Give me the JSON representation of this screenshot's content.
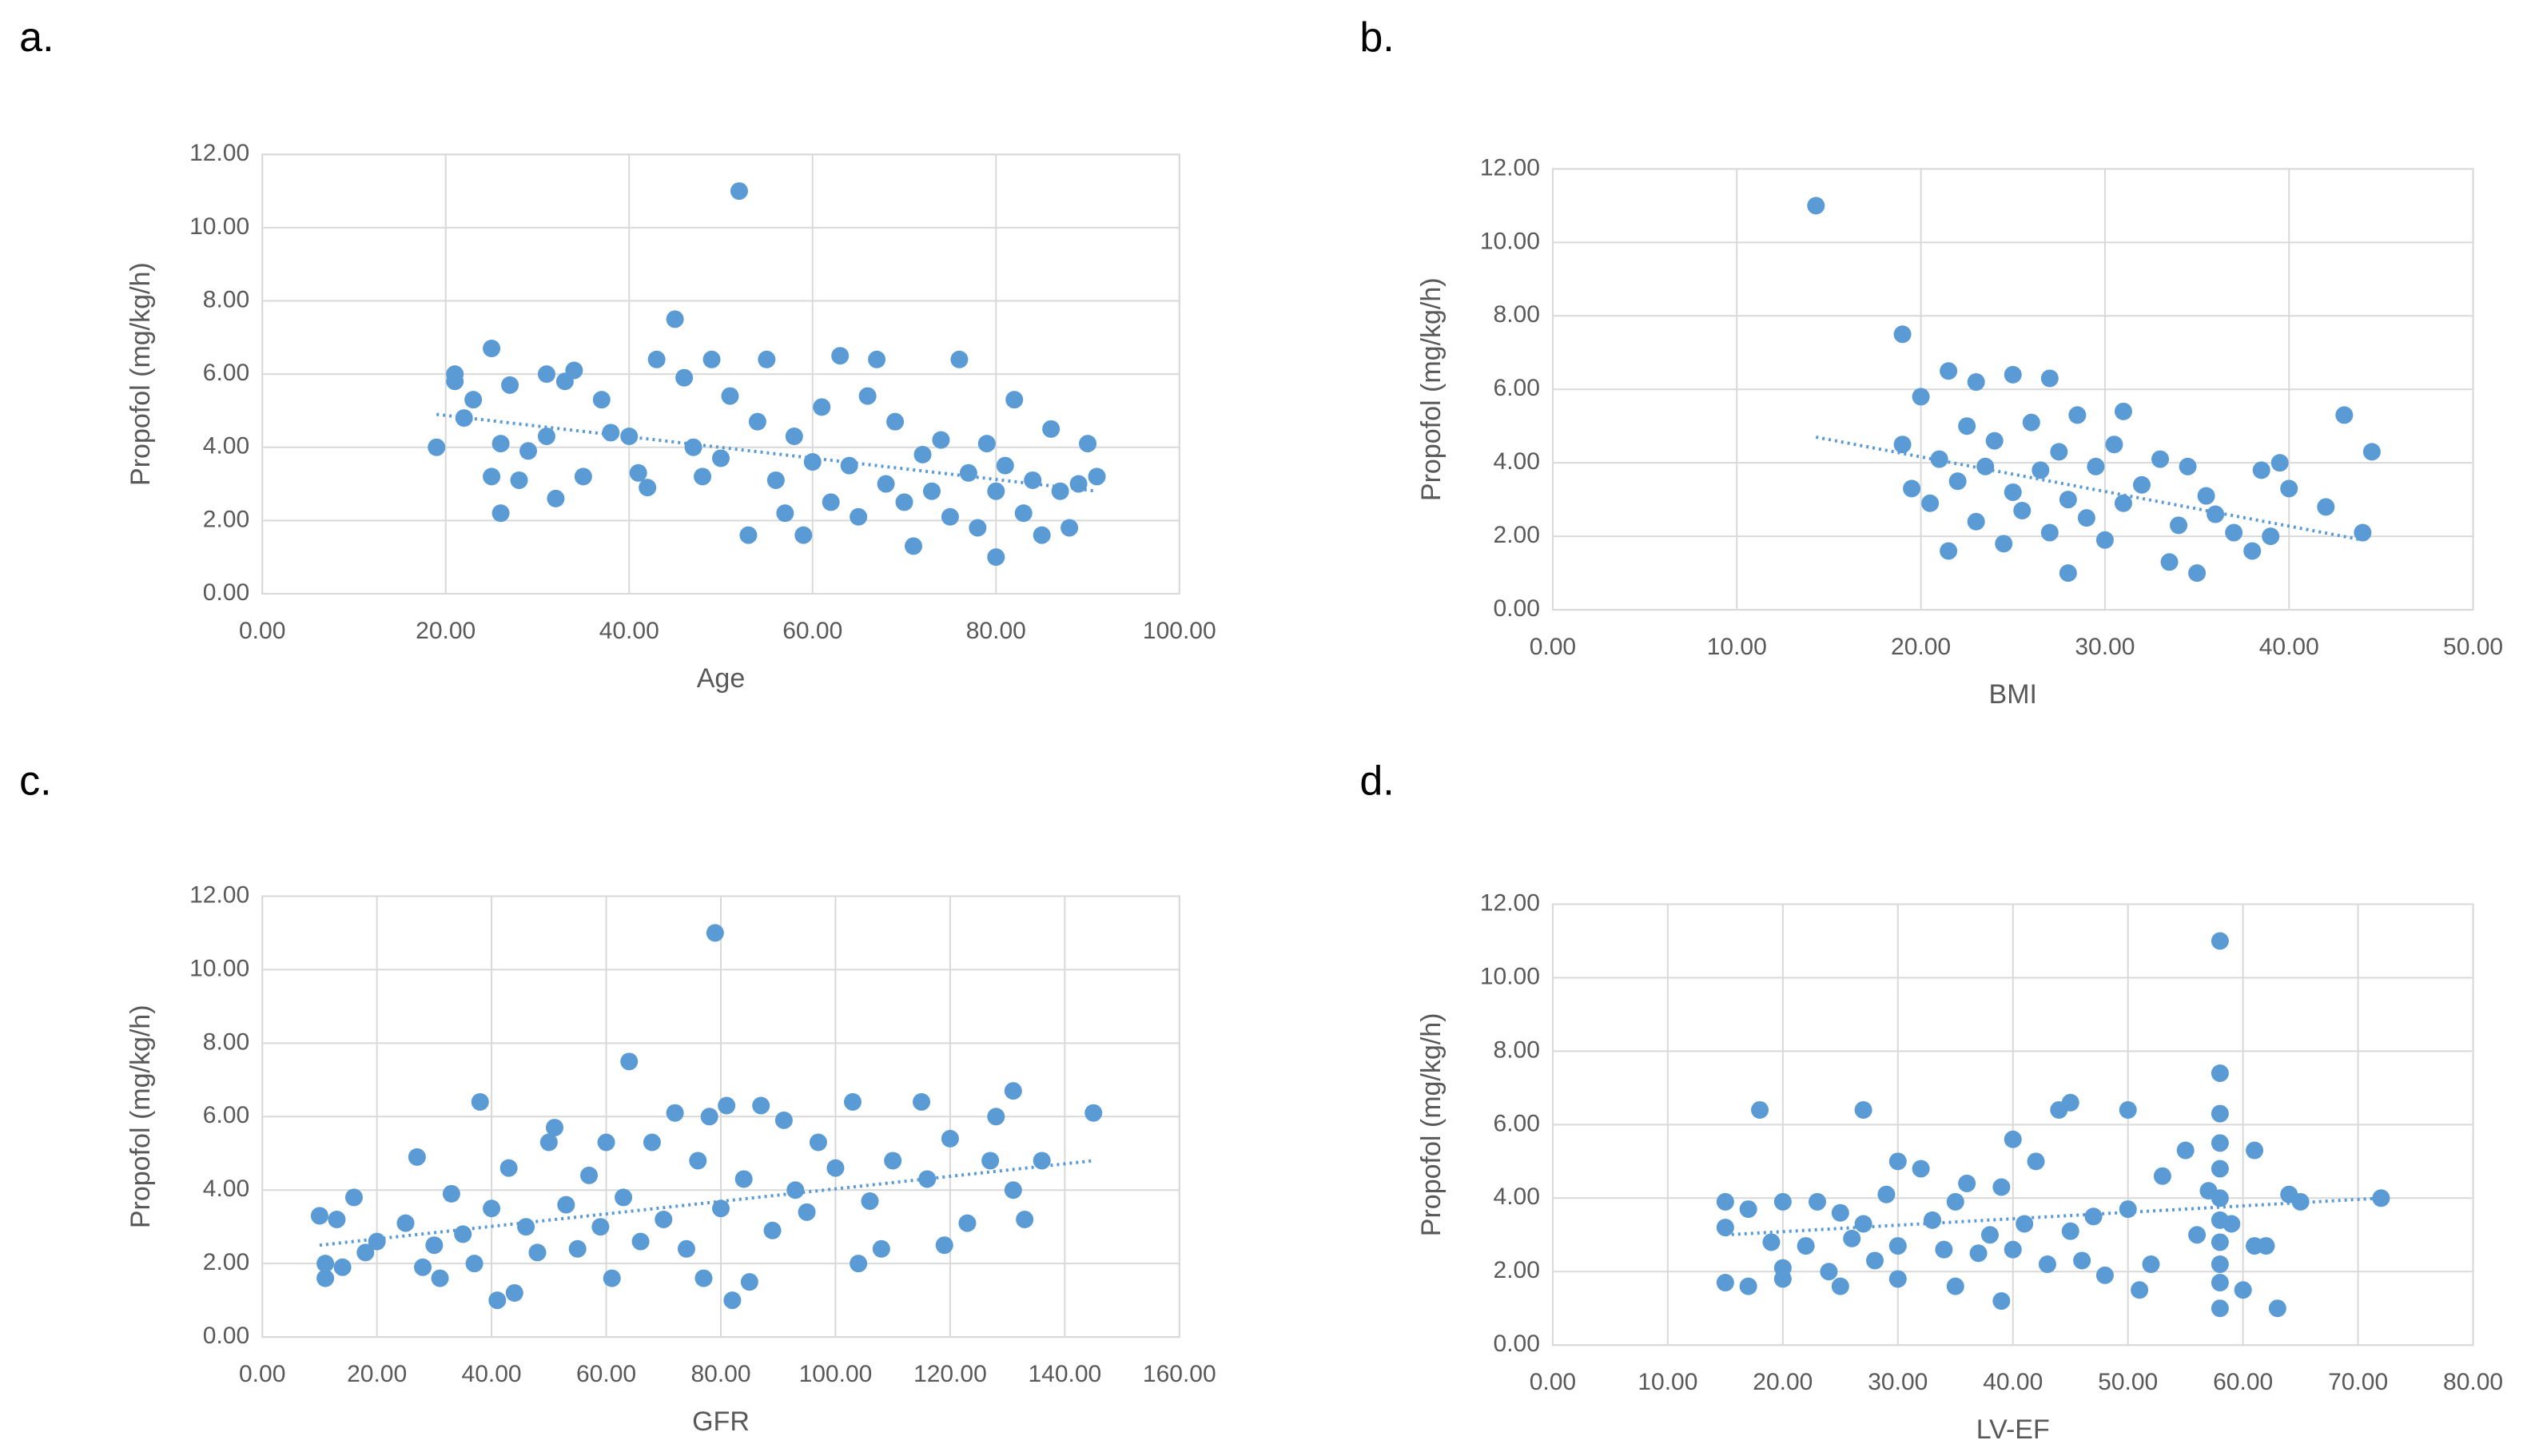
{
  "chart_data": [
    {
      "type": "scatter",
      "label": "a.",
      "x_label": "Age",
      "y_label": "Propofol (mg/kg/h)",
      "color": "#5b9bd5",
      "grid": true,
      "x": [
        19,
        21,
        21,
        22,
        23,
        25,
        25,
        26,
        26,
        27,
        28,
        29,
        31,
        31,
        32,
        33,
        34,
        35,
        37,
        38,
        40,
        41,
        42,
        43,
        45,
        46,
        47,
        48,
        49,
        50,
        51,
        52,
        53,
        54,
        55,
        56,
        57,
        58,
        59,
        60,
        61,
        62,
        63,
        64,
        65,
        66,
        67,
        68,
        69,
        70,
        71,
        72,
        73,
        74,
        75,
        76,
        77,
        78,
        79,
        80,
        80,
        81,
        82,
        83,
        84,
        85,
        86,
        87,
        88,
        89,
        90,
        91
      ],
      "values": [
        4.0,
        6.0,
        5.8,
        4.8,
        5.3,
        6.7,
        3.2,
        2.2,
        4.1,
        5.7,
        3.1,
        3.9,
        6.0,
        4.3,
        2.6,
        5.8,
        6.1,
        3.2,
        5.3,
        4.4,
        4.3,
        3.3,
        2.9,
        6.4,
        7.5,
        5.9,
        4.0,
        3.2,
        6.4,
        3.7,
        5.4,
        11.0,
        1.6,
        4.7,
        6.4,
        3.1,
        2.2,
        4.3,
        1.6,
        3.6,
        5.1,
        2.5,
        6.5,
        3.5,
        2.1,
        5.4,
        6.4,
        3.0,
        4.7,
        2.5,
        1.3,
        3.8,
        2.8,
        4.2,
        2.1,
        6.4,
        3.3,
        1.8,
        4.1,
        1.0,
        2.8,
        3.5,
        5.3,
        2.2,
        3.1,
        1.6,
        4.5,
        2.8,
        1.8,
        3.0,
        4.1,
        3.2
      ],
      "trend": {
        "x": [
          19,
          91
        ],
        "values": [
          4.9,
          2.8
        ]
      },
      "xlim": [
        0,
        100
      ],
      "ylim": [
        0,
        12
      ],
      "xticks": [
        {
          "value": 0,
          "label": "0.00"
        },
        {
          "value": 20,
          "label": "20.00"
        },
        {
          "value": 40,
          "label": "40.00"
        },
        {
          "value": 60,
          "label": "60.00"
        },
        {
          "value": 80,
          "label": "80.00"
        },
        {
          "value": 100,
          "label": "100.00"
        }
      ],
      "yticks": [
        {
          "value": 0,
          "label": "0.00"
        },
        {
          "value": 2,
          "label": "2.00"
        },
        {
          "value": 4,
          "label": "4.00"
        },
        {
          "value": 6,
          "label": "6.00"
        },
        {
          "value": 8,
          "label": "8.00"
        },
        {
          "value": 10,
          "label": "10.00"
        },
        {
          "value": 12,
          "label": "12.00"
        }
      ]
    },
    {
      "type": "scatter",
      "label": "b.",
      "x_label": "BMI",
      "y_label": "Propofol (mg/kg/h)",
      "color": "#5b9bd5",
      "grid": true,
      "x": [
        14.3,
        19,
        19,
        19.5,
        20,
        20.5,
        21,
        21.5,
        21.5,
        22,
        22.5,
        23,
        23,
        23.5,
        24,
        24.5,
        25,
        25,
        25.5,
        26,
        26.5,
        27,
        27,
        27.5,
        28,
        28,
        28.5,
        29,
        29.5,
        30,
        30.5,
        31,
        31,
        32,
        33,
        33.5,
        34,
        34.5,
        35,
        35.5,
        36,
        37,
        38,
        38.5,
        39,
        39.5,
        40,
        42,
        43,
        44,
        44.5
      ],
      "values": [
        11.0,
        7.5,
        4.5,
        3.3,
        5.8,
        2.9,
        4.1,
        6.5,
        1.6,
        3.5,
        5.0,
        6.2,
        2.4,
        3.9,
        4.6,
        1.8,
        6.4,
        3.2,
        2.7,
        5.1,
        3.8,
        6.3,
        2.1,
        4.3,
        1.0,
        3.0,
        5.3,
        2.5,
        3.9,
        1.9,
        4.5,
        5.4,
        2.9,
        3.4,
        4.1,
        1.3,
        2.3,
        3.9,
        1.0,
        3.1,
        2.6,
        2.1,
        1.6,
        3.8,
        2.0,
        4.0,
        3.3,
        2.8,
        5.3,
        2.1,
        4.3
      ],
      "trend": {
        "x": [
          14.3,
          44
        ],
        "values": [
          4.7,
          1.9
        ]
      },
      "xlim": [
        0,
        50
      ],
      "ylim": [
        0,
        12
      ],
      "xticks": [
        {
          "value": 0,
          "label": "0.00"
        },
        {
          "value": 10,
          "label": "10.00"
        },
        {
          "value": 20,
          "label": "20.00"
        },
        {
          "value": 30,
          "label": "30.00"
        },
        {
          "value": 40,
          "label": "40.00"
        },
        {
          "value": 50,
          "label": "50.00"
        }
      ],
      "yticks": [
        {
          "value": 0,
          "label": "0.00"
        },
        {
          "value": 2,
          "label": "2.00"
        },
        {
          "value": 4,
          "label": "4.00"
        },
        {
          "value": 6,
          "label": "6.00"
        },
        {
          "value": 8,
          "label": "8.00"
        },
        {
          "value": 10,
          "label": "10.00"
        },
        {
          "value": 12,
          "label": "12.00"
        }
      ]
    },
    {
      "type": "scatter",
      "label": "c.",
      "x_label": "GFR",
      "y_label": "Propofol (mg/kg/h)",
      "color": "#5b9bd5",
      "grid": true,
      "x": [
        10,
        11,
        11,
        13,
        14,
        16,
        18,
        20,
        25,
        27,
        28,
        30,
        31,
        33,
        35,
        37,
        38,
        40,
        41,
        43,
        44,
        46,
        48,
        50,
        51,
        53,
        55,
        57,
        59,
        60,
        61,
        63,
        64,
        66,
        68,
        70,
        72,
        74,
        76,
        77,
        78,
        79,
        80,
        81,
        82,
        84,
        85,
        87,
        89,
        91,
        93,
        95,
        97,
        100,
        103,
        104,
        106,
        108,
        110,
        115,
        116,
        119,
        120,
        123,
        127,
        128,
        131,
        131,
        133,
        136,
        145
      ],
      "values": [
        3.3,
        2.0,
        1.6,
        3.2,
        1.9,
        3.8,
        2.3,
        2.6,
        3.1,
        4.9,
        1.9,
        2.5,
        1.6,
        3.9,
        2.8,
        2.0,
        6.4,
        3.5,
        1.0,
        4.6,
        1.2,
        3.0,
        2.3,
        5.3,
        5.7,
        3.6,
        2.4,
        4.4,
        3.0,
        5.3,
        1.6,
        3.8,
        7.5,
        2.6,
        5.3,
        3.2,
        6.1,
        2.4,
        4.8,
        1.6,
        6.0,
        11.0,
        3.5,
        6.3,
        1.0,
        4.3,
        1.5,
        6.3,
        2.9,
        5.9,
        4.0,
        3.4,
        5.3,
        4.6,
        6.4,
        2.0,
        3.7,
        2.4,
        4.8,
        6.4,
        4.3,
        2.5,
        5.4,
        3.1,
        4.8,
        6.0,
        6.7,
        4.0,
        3.2,
        4.8,
        6.1
      ],
      "trend": {
        "x": [
          10,
          145
        ],
        "values": [
          2.5,
          4.8
        ]
      },
      "xlim": [
        0,
        160
      ],
      "ylim": [
        0,
        12
      ],
      "xticks": [
        {
          "value": 0,
          "label": "0.00"
        },
        {
          "value": 20,
          "label": "20.00"
        },
        {
          "value": 40,
          "label": "40.00"
        },
        {
          "value": 60,
          "label": "60.00"
        },
        {
          "value": 80,
          "label": "80.00"
        },
        {
          "value": 100,
          "label": "100.00"
        },
        {
          "value": 120,
          "label": "120.00"
        },
        {
          "value": 140,
          "label": "140.00"
        },
        {
          "value": 160,
          "label": "160.00"
        }
      ],
      "yticks": [
        {
          "value": 0,
          "label": "0.00"
        },
        {
          "value": 2,
          "label": "2.00"
        },
        {
          "value": 4,
          "label": "4.00"
        },
        {
          "value": 6,
          "label": "6.00"
        },
        {
          "value": 8,
          "label": "8.00"
        },
        {
          "value": 10,
          "label": "10.00"
        },
        {
          "value": 12,
          "label": "12.00"
        }
      ]
    },
    {
      "type": "scatter",
      "label": "d.",
      "x_label": "LV-EF",
      "y_label": "Propofol (mg/kg/h)",
      "color": "#5b9bd5",
      "grid": true,
      "x": [
        15,
        15,
        15,
        17,
        17,
        18,
        19,
        20,
        20,
        20,
        22,
        23,
        24,
        25,
        25,
        26,
        27,
        27,
        28,
        29,
        30,
        30,
        30,
        32,
        33,
        34,
        35,
        35,
        36,
        37,
        38,
        39,
        39,
        40,
        40,
        41,
        42,
        43,
        44,
        45,
        45,
        46,
        47,
        48,
        50,
        50,
        51,
        52,
        53,
        55,
        56,
        57,
        58,
        58,
        58,
        58,
        58,
        58,
        58,
        58,
        58,
        58,
        58,
        59,
        60,
        61,
        61,
        62,
        63,
        64,
        65,
        72
      ],
      "values": [
        3.9,
        3.2,
        1.7,
        3.7,
        1.6,
        6.4,
        2.8,
        3.9,
        2.1,
        1.8,
        2.7,
        3.9,
        2.0,
        3.6,
        1.6,
        2.9,
        6.4,
        3.3,
        2.3,
        4.1,
        5.0,
        2.7,
        1.8,
        4.8,
        3.4,
        2.6,
        1.6,
        3.9,
        4.4,
        2.5,
        3.0,
        1.2,
        4.3,
        2.6,
        5.6,
        3.3,
        5.0,
        2.2,
        6.4,
        6.6,
        3.1,
        2.3,
        3.5,
        1.9,
        6.4,
        3.7,
        1.5,
        2.2,
        4.6,
        5.3,
        3.0,
        4.2,
        11.0,
        7.4,
        6.3,
        5.5,
        4.8,
        4.0,
        3.4,
        2.8,
        2.2,
        1.7,
        1.0,
        3.3,
        1.5,
        5.3,
        2.7,
        2.7,
        1.0,
        4.1,
        3.9,
        4.0
      ],
      "trend": {
        "x": [
          15,
          72
        ],
        "values": [
          3.0,
          4.0
        ]
      },
      "xlim": [
        0,
        80
      ],
      "ylim": [
        0,
        12
      ],
      "xticks": [
        {
          "value": 0,
          "label": "0.00"
        },
        {
          "value": 10,
          "label": "10.00"
        },
        {
          "value": 20,
          "label": "20.00"
        },
        {
          "value": 30,
          "label": "30.00"
        },
        {
          "value": 40,
          "label": "40.00"
        },
        {
          "value": 50,
          "label": "50.00"
        },
        {
          "value": 60,
          "label": "60.00"
        },
        {
          "value": 70,
          "label": "70.00"
        },
        {
          "value": 80,
          "label": "80.00"
        }
      ],
      "yticks": [
        {
          "value": 0,
          "label": "0.00"
        },
        {
          "value": 2,
          "label": "2.00"
        },
        {
          "value": 4,
          "label": "4.00"
        },
        {
          "value": 6,
          "label": "6.00"
        },
        {
          "value": 8,
          "label": "8.00"
        },
        {
          "value": 10,
          "label": "10.00"
        },
        {
          "value": 12,
          "label": "12.00"
        }
      ]
    }
  ]
}
